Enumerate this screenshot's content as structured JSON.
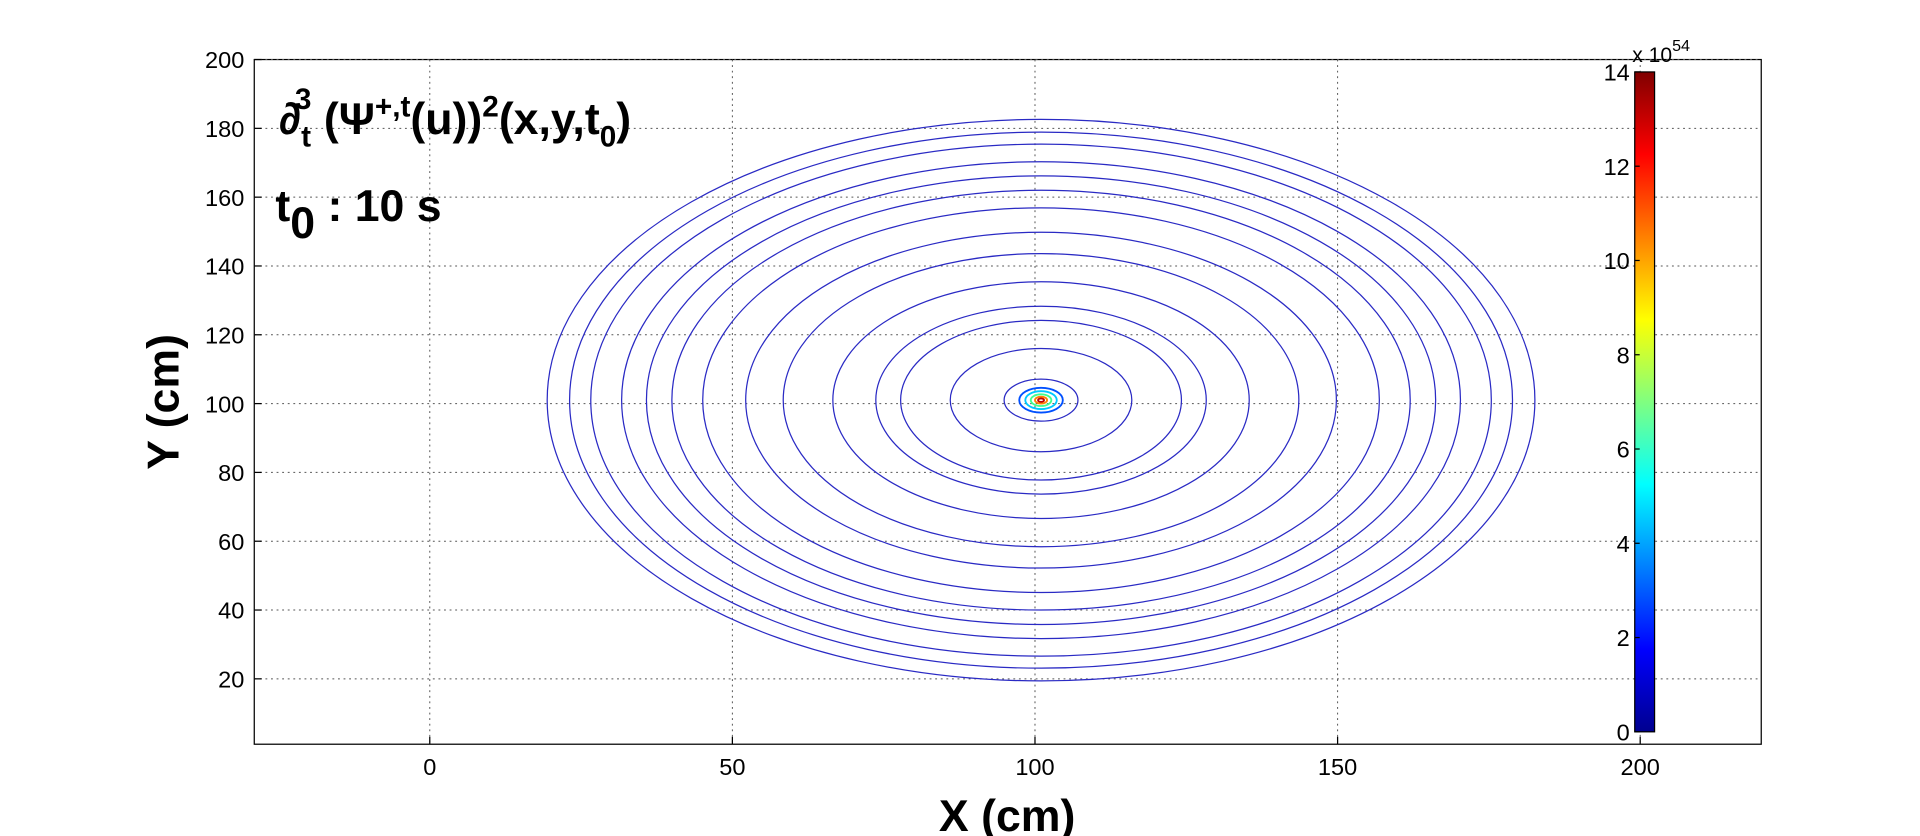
{
  "chart_data": {
    "type": "contour",
    "title": [
      "∂",
      "t",
      "3",
      " (Ψ",
      "+,t",
      "(u))",
      "2",
      "(x,y,t",
      "0",
      ")"
    ],
    "subtitle": [
      "t",
      "0",
      " : 10 s"
    ],
    "x_label": "X (cm)",
    "y_label": "Y (cm)",
    "xlim": [
      -29,
      220
    ],
    "xticks": [
      0,
      50,
      100,
      150,
      200
    ],
    "ylim": [
      1,
      200
    ],
    "yticks": [
      20,
      40,
      60,
      80,
      100,
      120,
      140,
      160,
      180,
      200
    ],
    "grid": true,
    "center": [
      101,
      101
    ],
    "contour_radii": [
      81.6,
      77.9,
      74.4,
      69.3,
      65.2,
      61,
      55.9,
      48.8,
      42.6,
      34.4,
      27.3,
      23.2,
      15,
      6.1
    ],
    "contour_color": "#2a2ac4",
    "core_rings": [
      {
        "radius": 3.6,
        "color": "#0050ff"
      },
      {
        "radius": 2.6,
        "color": "#00c8ff"
      },
      {
        "radius": 1.7,
        "color": "#40ff90"
      },
      {
        "radius": 1,
        "color": "#ff8000"
      },
      {
        "radius": 0.5,
        "color": "#c00000"
      }
    ],
    "colorbar": {
      "lim": [
        0,
        14
      ],
      "ticks": [
        0,
        2,
        4,
        6,
        8,
        10,
        12,
        14
      ],
      "exponent_label": [
        "x 10",
        "54"
      ],
      "colormap": [
        "#00008f",
        "#0000ff",
        "#0080ff",
        "#00ffff",
        "#80ff80",
        "#ffff00",
        "#ff8000",
        "#ff0000",
        "#800000"
      ]
    }
  }
}
